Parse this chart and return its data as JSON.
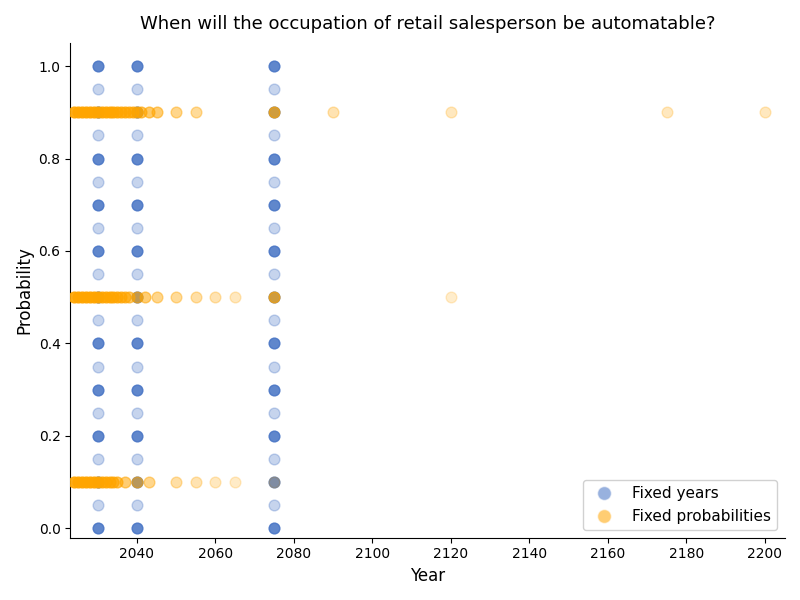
{
  "title": "When will the occupation of retail salesperson be automatable?",
  "xlabel": "Year",
  "ylabel": "Probability",
  "xlim": [
    2023,
    2205
  ],
  "ylim": [
    -0.02,
    1.05
  ],
  "fixed_years_color": "#4472C4",
  "fixed_probs_color": "#FFA500",
  "marker_size": 60,
  "legend_labels": [
    "Fixed years",
    "Fixed probabilities"
  ],
  "figsize": [
    8.0,
    6.0
  ],
  "dpi": 100,
  "xticks": [
    2040,
    2060,
    2080,
    2100,
    2120,
    2140,
    2160,
    2180,
    2200
  ],
  "yticks": [
    0.0,
    0.2,
    0.4,
    0.6,
    0.8,
    1.0
  ],
  "fixed_year_columns": [
    2030,
    2040,
    2075
  ],
  "fixed_year_probs_dark": [
    0.0,
    0.1,
    0.2,
    0.3,
    0.4,
    0.5,
    0.6,
    0.7,
    0.8,
    0.9,
    1.0
  ],
  "fixed_year_probs_light": [
    0.05,
    0.15,
    0.25,
    0.35,
    0.45,
    0.55,
    0.65,
    0.75,
    0.85,
    0.95
  ],
  "alpha_blue_dark": 0.85,
  "alpha_blue_light": 0.3,
  "fp_09_years": [
    2024,
    2025,
    2026,
    2027,
    2028,
    2029,
    2030,
    2031,
    2032,
    2033,
    2034,
    2035,
    2036,
    2037,
    2038,
    2039,
    2040,
    2041,
    2043,
    2045,
    2050,
    2055,
    2075,
    2090,
    2120,
    2175,
    2200
  ],
  "fp_09_alphas": [
    0.9,
    0.9,
    0.9,
    0.9,
    0.9,
    0.9,
    0.9,
    0.85,
    0.85,
    0.85,
    0.8,
    0.8,
    0.75,
    0.75,
    0.7,
    0.7,
    0.7,
    0.65,
    0.6,
    0.55,
    0.45,
    0.4,
    0.7,
    0.3,
    0.25,
    0.25,
    0.25
  ],
  "fp_05_years": [
    2024,
    2025,
    2026,
    2027,
    2028,
    2029,
    2030,
    2031,
    2032,
    2033,
    2034,
    2035,
    2036,
    2037,
    2038,
    2040,
    2042,
    2045,
    2050,
    2055,
    2060,
    2065,
    2075,
    2120
  ],
  "fp_05_alphas": [
    0.9,
    0.9,
    0.9,
    0.9,
    0.9,
    0.9,
    0.9,
    0.8,
    0.8,
    0.8,
    0.75,
    0.75,
    0.7,
    0.65,
    0.6,
    0.6,
    0.55,
    0.45,
    0.4,
    0.35,
    0.3,
    0.25,
    0.7,
    0.2
  ],
  "fp_01_years": [
    2024,
    2025,
    2026,
    2027,
    2028,
    2029,
    2030,
    2031,
    2032,
    2033,
    2034,
    2035,
    2037,
    2040,
    2043,
    2050,
    2055,
    2060,
    2065,
    2075
  ],
  "fp_01_alphas": [
    0.9,
    0.9,
    0.9,
    0.9,
    0.9,
    0.9,
    0.9,
    0.8,
    0.8,
    0.75,
    0.7,
    0.65,
    0.55,
    0.55,
    0.45,
    0.35,
    0.3,
    0.25,
    0.22,
    0.2
  ]
}
